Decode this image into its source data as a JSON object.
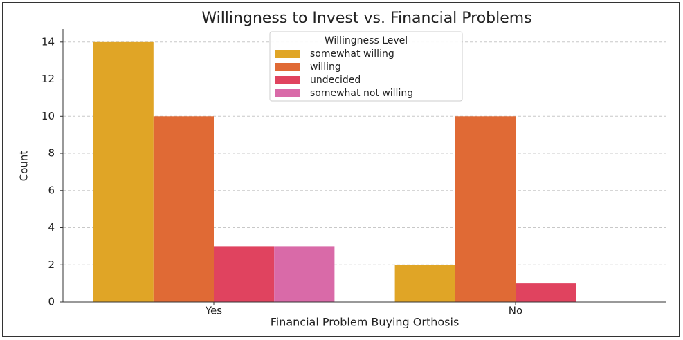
{
  "chart_data": {
    "type": "bar",
    "title": "Willingness to Invest vs. Financial Problems",
    "x_label": "Financial Problem Buying Orthosis",
    "y_label": "Count",
    "categories": [
      "Yes",
      "No"
    ],
    "legend_title": "Willingness Level",
    "series": [
      {
        "name": "somewhat willing",
        "color": "#e0a526",
        "values": [
          14,
          2
        ]
      },
      {
        "name": "willing",
        "color": "#e06a35",
        "values": [
          10,
          10
        ]
      },
      {
        "name": "undecided",
        "color": "#e0435f",
        "values": [
          3,
          1
        ]
      },
      {
        "name": "somewhat not willing",
        "color": "#d96aa8",
        "values": [
          3,
          0
        ]
      }
    ],
    "ylim": [
      0,
      14.7
    ],
    "yticks": [
      0,
      2,
      4,
      6,
      8,
      10,
      12,
      14
    ],
    "grid": true,
    "legend_position": "upper center"
  }
}
